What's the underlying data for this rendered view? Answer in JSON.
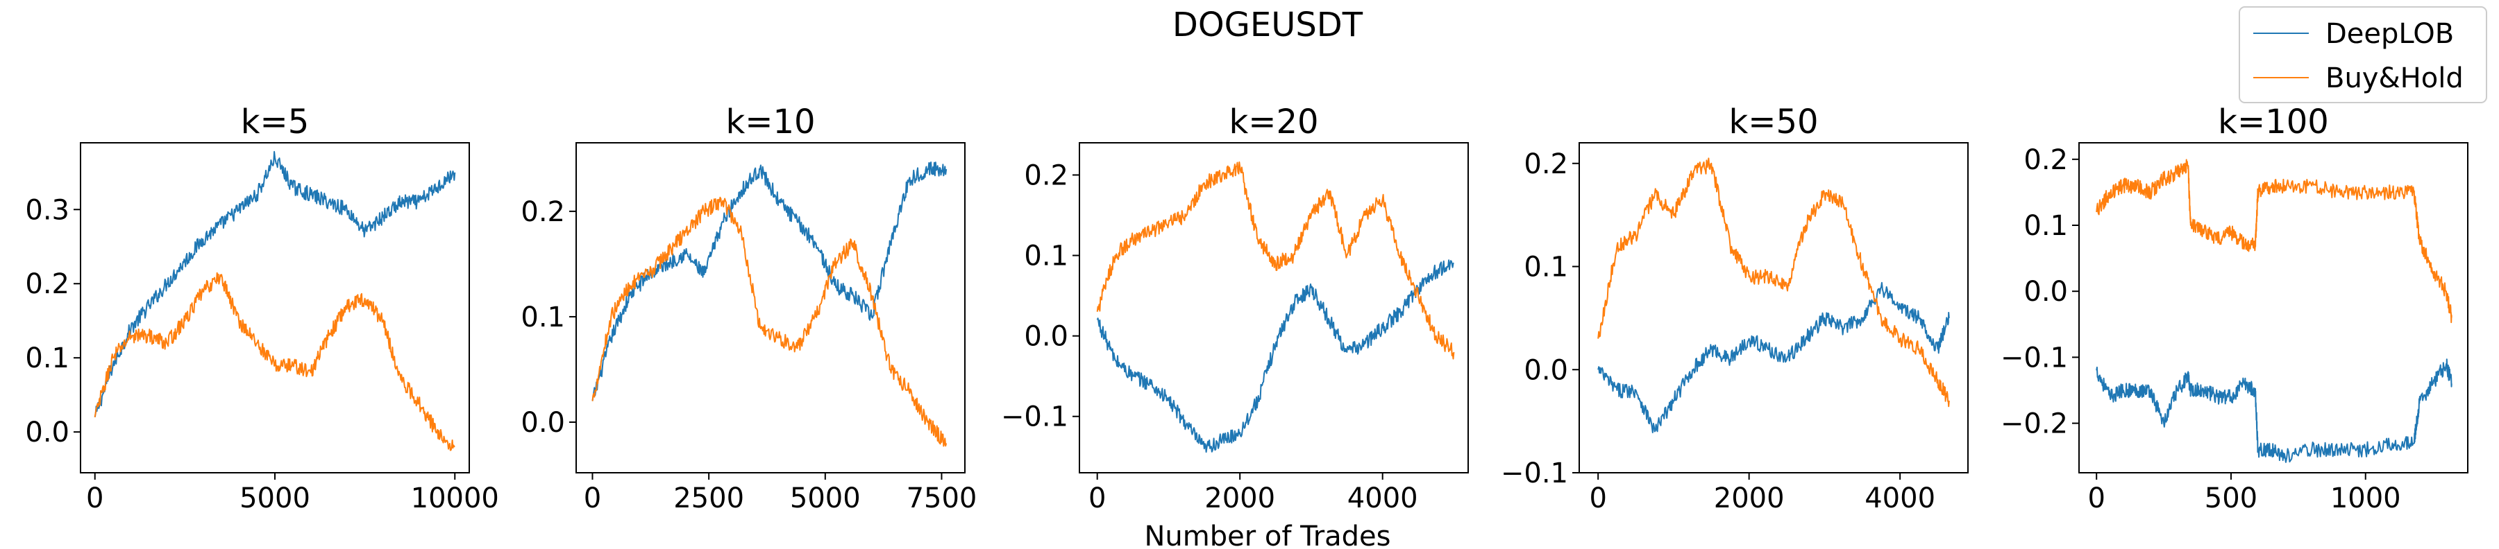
{
  "figure": {
    "title": "DOGEUSDT",
    "xlabel": "Number of Trades",
    "legend": {
      "placement": "top-right",
      "entries": [
        {
          "name": "DeepLOB",
          "color": "#1f77b4"
        },
        {
          "name": "Buy&Hold",
          "color": "#ff7f0e"
        }
      ]
    }
  },
  "chart_data": [
    {
      "type": "line",
      "title": "k=5",
      "xlim": [
        -400,
        10400
      ],
      "ylim": [
        -0.055,
        0.39
      ],
      "xticks": [
        0,
        5000,
        10000
      ],
      "xtick_labels": [
        "0",
        "5000",
        "10000"
      ],
      "yticks": [
        0.0,
        0.1,
        0.2,
        0.3
      ],
      "ytick_labels": [
        "0.0",
        "0.1",
        "0.2",
        "0.3"
      ],
      "series": [
        {
          "name": "DeepLOB",
          "color": "#1f77b4",
          "x": [
            0,
            500,
            1000,
            1500,
            2000,
            2500,
            3000,
            3500,
            4000,
            4500,
            5000,
            5500,
            6000,
            6500,
            7000,
            7500,
            8000,
            8500,
            9000,
            9500,
            10000
          ],
          "y": [
            0.02,
            0.09,
            0.14,
            0.17,
            0.2,
            0.23,
            0.26,
            0.28,
            0.3,
            0.32,
            0.37,
            0.33,
            0.32,
            0.31,
            0.3,
            0.27,
            0.29,
            0.31,
            0.31,
            0.33,
            0.35
          ]
        },
        {
          "name": "Buy&Hold",
          "color": "#ff7f0e",
          "x": [
            0,
            500,
            1000,
            1500,
            2000,
            2500,
            3000,
            3500,
            4000,
            4500,
            5000,
            5500,
            6000,
            6500,
            7000,
            7500,
            8000,
            8500,
            9000,
            9500,
            10000
          ],
          "y": [
            0.02,
            0.1,
            0.13,
            0.13,
            0.12,
            0.15,
            0.19,
            0.21,
            0.15,
            0.12,
            0.09,
            0.09,
            0.08,
            0.13,
            0.17,
            0.18,
            0.15,
            0.07,
            0.04,
            0.0,
            -0.02
          ]
        }
      ]
    },
    {
      "type": "line",
      "title": "k=10",
      "xlim": [
        -350,
        8000
      ],
      "ylim": [
        -0.048,
        0.265
      ],
      "xticks": [
        0,
        2500,
        5000,
        7500
      ],
      "xtick_labels": [
        "0",
        "2500",
        "5000",
        "7500"
      ],
      "yticks": [
        0.0,
        0.1,
        0.2
      ],
      "ytick_labels": [
        "0.0",
        "0.1",
        "0.2"
      ],
      "series": [
        {
          "name": "DeepLOB",
          "color": "#1f77b4",
          "x": [
            0,
            400,
            800,
            1200,
            1600,
            2000,
            2400,
            2800,
            3200,
            3600,
            4000,
            4400,
            4800,
            5200,
            5600,
            6000,
            6400,
            6800,
            7200,
            7600
          ],
          "y": [
            0.02,
            0.08,
            0.12,
            0.14,
            0.15,
            0.16,
            0.14,
            0.19,
            0.22,
            0.24,
            0.21,
            0.19,
            0.17,
            0.13,
            0.12,
            0.1,
            0.17,
            0.23,
            0.24,
            0.24
          ]
        },
        {
          "name": "Buy&Hold",
          "color": "#ff7f0e",
          "x": [
            0,
            400,
            800,
            1200,
            1600,
            2000,
            2400,
            2800,
            3200,
            3600,
            4000,
            4400,
            4800,
            5200,
            5600,
            6000,
            6400,
            6800,
            7200,
            7600
          ],
          "y": [
            0.02,
            0.1,
            0.13,
            0.14,
            0.16,
            0.18,
            0.2,
            0.21,
            0.18,
            0.09,
            0.08,
            0.07,
            0.1,
            0.15,
            0.17,
            0.12,
            0.05,
            0.03,
            0.0,
            -0.02
          ]
        }
      ]
    },
    {
      "type": "line",
      "title": "k=20",
      "xlim": [
        -250,
        5200
      ],
      "ylim": [
        -0.17,
        0.24
      ],
      "xticks": [
        0,
        2000,
        4000
      ],
      "xtick_labels": [
        "0",
        "2000",
        "4000"
      ],
      "yticks": [
        -0.1,
        0.0,
        0.1,
        0.2
      ],
      "ytick_labels": [
        "−0.1",
        "0.0",
        "0.1",
        "0.2"
      ],
      "series": [
        {
          "name": "DeepLOB",
          "color": "#1f77b4",
          "x": [
            0,
            250,
            500,
            750,
            1000,
            1250,
            1500,
            1750,
            2000,
            2250,
            2500,
            2750,
            3000,
            3250,
            3500,
            3750,
            4000,
            4250,
            4500,
            4750,
            5000
          ],
          "y": [
            0.02,
            -0.03,
            -0.05,
            -0.06,
            -0.08,
            -0.11,
            -0.14,
            -0.13,
            -0.12,
            -0.08,
            -0.01,
            0.04,
            0.06,
            0.02,
            -0.02,
            -0.01,
            0.01,
            0.03,
            0.06,
            0.08,
            0.09
          ]
        },
        {
          "name": "Buy&Hold",
          "color": "#ff7f0e",
          "x": [
            0,
            250,
            500,
            750,
            1000,
            1250,
            1500,
            1750,
            2000,
            2250,
            2500,
            2750,
            3000,
            3250,
            3500,
            3750,
            4000,
            4250,
            4500,
            4750,
            5000
          ],
          "y": [
            0.03,
            0.1,
            0.12,
            0.13,
            0.14,
            0.15,
            0.19,
            0.2,
            0.21,
            0.12,
            0.09,
            0.1,
            0.15,
            0.18,
            0.1,
            0.15,
            0.17,
            0.1,
            0.05,
            0.0,
            -0.02
          ]
        }
      ]
    },
    {
      "type": "line",
      "title": "k=50",
      "xlim": [
        -250,
        4900
      ],
      "ylim": [
        -0.1,
        0.22
      ],
      "xticks": [
        0,
        2000,
        4000
      ],
      "xtick_labels": [
        "0",
        "2000",
        "4000"
      ],
      "yticks": [
        -0.1,
        0.0,
        0.1,
        0.2
      ],
      "ytick_labels": [
        "−0.1",
        "0.0",
        "0.1",
        "0.2"
      ],
      "series": [
        {
          "name": "DeepLOB",
          "color": "#1f77b4",
          "x": [
            0,
            250,
            500,
            750,
            1000,
            1250,
            1500,
            1750,
            2000,
            2250,
            2500,
            2750,
            3000,
            3250,
            3500,
            3750,
            4000,
            4250,
            4500,
            4650
          ],
          "y": [
            0.0,
            -0.02,
            -0.02,
            -0.06,
            -0.03,
            0.0,
            0.02,
            0.01,
            0.03,
            0.02,
            0.01,
            0.03,
            0.05,
            0.04,
            0.05,
            0.08,
            0.06,
            0.05,
            0.02,
            0.05
          ]
        },
        {
          "name": "Buy&Hold",
          "color": "#ff7f0e",
          "x": [
            0,
            250,
            500,
            750,
            1000,
            1250,
            1500,
            1750,
            2000,
            2250,
            2500,
            2750,
            3000,
            3250,
            3500,
            3750,
            4000,
            4250,
            4500,
            4650
          ],
          "y": [
            0.03,
            0.12,
            0.13,
            0.17,
            0.15,
            0.19,
            0.2,
            0.12,
            0.09,
            0.09,
            0.08,
            0.14,
            0.17,
            0.16,
            0.1,
            0.05,
            0.03,
            0.02,
            -0.01,
            -0.03
          ]
        }
      ]
    },
    {
      "type": "line",
      "title": "k=100",
      "xlim": [
        -65,
        1380
      ],
      "ylim": [
        -0.275,
        0.225
      ],
      "xticks": [
        0,
        500,
        1000
      ],
      "xtick_labels": [
        "0",
        "500",
        "1000"
      ],
      "yticks": [
        -0.2,
        -0.1,
        0.0,
        0.1,
        0.2
      ],
      "ytick_labels": [
        "−0.2",
        "−0.1",
        "0.0",
        "0.1",
        "0.2"
      ],
      "series": [
        {
          "name": "DeepLOB",
          "color": "#1f77b4",
          "x": [
            0,
            50,
            100,
            150,
            200,
            250,
            300,
            340,
            350,
            400,
            450,
            500,
            550,
            590,
            600,
            650,
            700,
            800,
            900,
            1000,
            1100,
            1180,
            1200,
            1250,
            1300,
            1320
          ],
          "y": [
            -0.12,
            -0.16,
            -0.15,
            -0.15,
            -0.15,
            -0.2,
            -0.15,
            -0.13,
            -0.15,
            -0.15,
            -0.16,
            -0.16,
            -0.14,
            -0.15,
            -0.24,
            -0.24,
            -0.25,
            -0.24,
            -0.24,
            -0.24,
            -0.23,
            -0.23,
            -0.17,
            -0.14,
            -0.11,
            -0.14
          ]
        },
        {
          "name": "Buy&Hold",
          "color": "#ff7f0e",
          "x": [
            0,
            50,
            100,
            150,
            200,
            250,
            300,
            340,
            350,
            400,
            450,
            500,
            550,
            590,
            600,
            650,
            700,
            800,
            900,
            1000,
            1100,
            1180,
            1200,
            1250,
            1300,
            1320
          ],
          "y": [
            0.12,
            0.15,
            0.16,
            0.16,
            0.15,
            0.17,
            0.18,
            0.19,
            0.1,
            0.09,
            0.08,
            0.09,
            0.07,
            0.07,
            0.15,
            0.16,
            0.16,
            0.16,
            0.15,
            0.15,
            0.15,
            0.15,
            0.08,
            0.03,
            0.0,
            -0.04
          ]
        }
      ]
    }
  ]
}
